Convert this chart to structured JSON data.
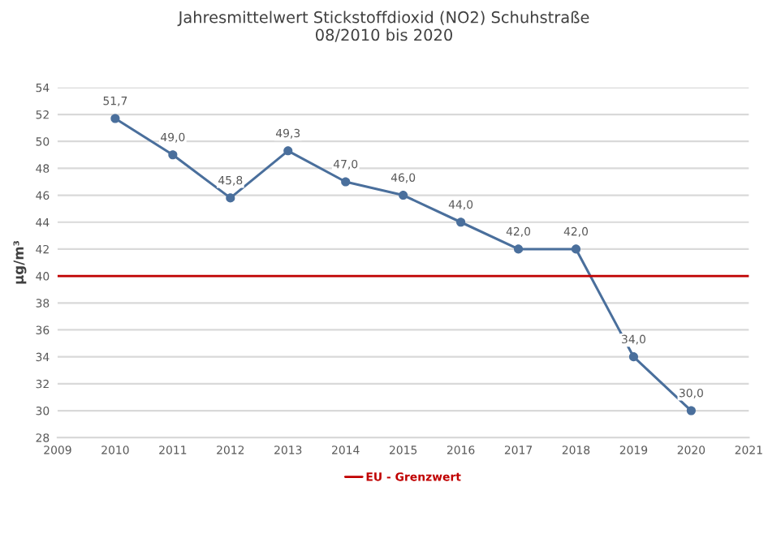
{
  "chart_data": {
    "type": "line",
    "title": "Jahresmittelwert Stickstoffdioxid (NO2) Schuhstraße",
    "subtitle": "08/2010 bis 2020",
    "ylabel": "µg/m³",
    "x": [
      2010,
      2011,
      2012,
      2013,
      2014,
      2015,
      2016,
      2017,
      2018,
      2019,
      2020
    ],
    "series": [
      {
        "color": "#4a6f9c",
        "values": [
          51.7,
          49.0,
          45.8,
          49.3,
          47.0,
          46.0,
          44.0,
          42.0,
          42.0,
          34.0,
          30.0
        ],
        "value_labels": [
          "51,7",
          "49,0",
          "45,8",
          "49,3",
          "47,0",
          "46,0",
          "44,0",
          "42,0",
          "42,0",
          "34,0",
          "30,0"
        ]
      }
    ],
    "xlim": [
      2009,
      2021
    ],
    "xticks": [
      2009,
      2010,
      2011,
      2012,
      2013,
      2014,
      2015,
      2016,
      2017,
      2018,
      2019,
      2020,
      2021
    ],
    "ylim": [
      28,
      54
    ],
    "yticks": [
      28,
      30,
      32,
      34,
      36,
      38,
      40,
      42,
      44,
      46,
      48,
      50,
      52,
      54
    ],
    "ref_lines": [
      {
        "axis": "y",
        "value": 40,
        "label": "EU - Grenzwert",
        "color": "#c00000",
        "line_style": "solid"
      }
    ],
    "grid": "y",
    "marker": "circle",
    "line_style": "solid",
    "legend": "bottom"
  }
}
